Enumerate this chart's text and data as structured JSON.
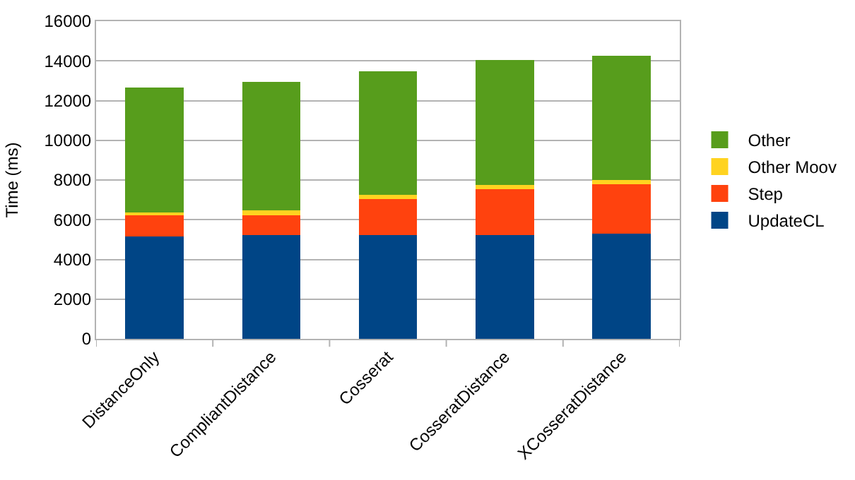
{
  "chart_data": {
    "type": "bar",
    "stacked": true,
    "ylabel": "Time (ms)",
    "categories": [
      "DistanceOnly",
      "CompliantDistance",
      "Cosserat",
      "CosseratDistance",
      "XCosseratDistance"
    ],
    "series": [
      {
        "name": "UpdateCL",
        "color": "#004586",
        "values": [
          5150,
          5230,
          5230,
          5230,
          5300
        ]
      },
      {
        "name": "Step",
        "color": "#ff420e",
        "values": [
          1060,
          980,
          1820,
          2300,
          2490
        ]
      },
      {
        "name": "Other Moov",
        "color": "#ffd320",
        "values": [
          170,
          260,
          190,
          220,
          200
        ]
      },
      {
        "name": "Other",
        "color": "#579d1c",
        "values": [
          6280,
          6460,
          6240,
          6280,
          6280
        ]
      }
    ],
    "ylim": [
      0,
      16000
    ],
    "yticks": [
      0,
      2000,
      4000,
      6000,
      8000,
      10000,
      12000,
      14000,
      16000
    ],
    "grid": "y",
    "legend": "right"
  }
}
